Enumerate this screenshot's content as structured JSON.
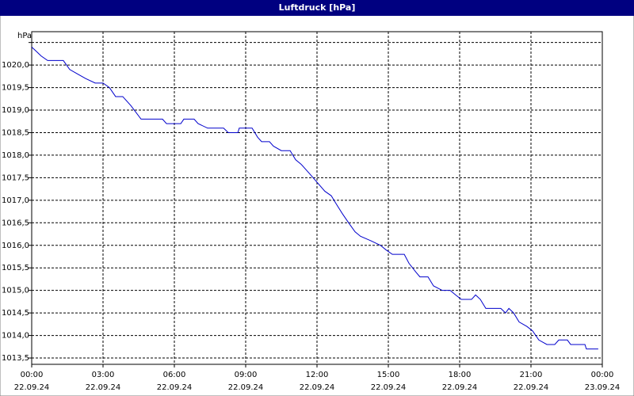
{
  "chart_data": {
    "type": "line",
    "title": "Luftdruck [hPa]",
    "y_unit": "hPa",
    "x": [
      0,
      0.2,
      0.4,
      0.67,
      1.33,
      1.6,
      1.93,
      2.27,
      2.67,
      3.0,
      3.27,
      3.53,
      3.83,
      4.17,
      4.6,
      5.5,
      5.67,
      6.27,
      6.4,
      6.83,
      7.0,
      7.4,
      8.07,
      8.27,
      8.67,
      8.73,
      9.27,
      9.5,
      9.67,
      10.0,
      10.17,
      10.5,
      10.87,
      11.1,
      11.33,
      11.67,
      12.0,
      12.33,
      12.6,
      12.83,
      13.07,
      13.33,
      13.6,
      13.83,
      14.27,
      14.67,
      14.9,
      15.17,
      15.67,
      15.87,
      16.17,
      16.33,
      16.67,
      16.9,
      17.27,
      17.6,
      17.83,
      18.07,
      18.5,
      18.67,
      18.87,
      19.1,
      19.73,
      19.93,
      20.07,
      20.27,
      20.5,
      20.83,
      21.07,
      21.33,
      21.67,
      22.0,
      22.17,
      22.53,
      22.67,
      23.27,
      23.33,
      23.83
    ],
    "series": [
      {
        "name": "Luftdruck",
        "color": "#0000cc",
        "values": [
          1020.4,
          1020.3,
          1020.2,
          1020.1,
          1020.1,
          1019.9,
          1019.8,
          1019.7,
          1019.6,
          1019.6,
          1019.5,
          1019.3,
          1019.3,
          1019.1,
          1018.8,
          1018.8,
          1018.7,
          1018.7,
          1018.8,
          1018.8,
          1018.7,
          1018.6,
          1018.6,
          1018.5,
          1018.5,
          1018.6,
          1018.6,
          1018.4,
          1018.3,
          1018.3,
          1018.2,
          1018.1,
          1018.1,
          1017.9,
          1017.8,
          1017.6,
          1017.4,
          1017.2,
          1017.1,
          1016.9,
          1016.7,
          1016.5,
          1016.3,
          1016.2,
          1016.1,
          1016.0,
          1015.9,
          1015.8,
          1015.8,
          1015.6,
          1015.4,
          1015.3,
          1015.3,
          1015.1,
          1015.0,
          1015.0,
          1014.9,
          1014.8,
          1014.8,
          1014.9,
          1014.8,
          1014.6,
          1014.6,
          1014.5,
          1014.6,
          1014.5,
          1014.3,
          1014.2,
          1014.1,
          1013.9,
          1013.8,
          1013.8,
          1013.9,
          1013.9,
          1013.8,
          1013.8,
          1013.7,
          1013.7
        ]
      }
    ],
    "xlim": [
      0,
      24
    ],
    "xticks": [
      {
        "value": 0,
        "label": "00:00",
        "date": "22.09.24"
      },
      {
        "value": 3,
        "label": "03:00",
        "date": "22.09.24"
      },
      {
        "value": 6,
        "label": "06:00",
        "date": "22.09.24"
      },
      {
        "value": 9,
        "label": "09:00",
        "date": "22.09.24"
      },
      {
        "value": 12,
        "label": "12:00",
        "date": "22.09.24"
      },
      {
        "value": 15,
        "label": "15:00",
        "date": "22.09.24"
      },
      {
        "value": 18,
        "label": "18:00",
        "date": "22.09.24"
      },
      {
        "value": 21,
        "label": "21:00",
        "date": "22.09.24"
      },
      {
        "value": 24,
        "label": "00:00",
        "date": "23.09.24"
      }
    ],
    "ylim": [
      1013.36,
      1020.74
    ],
    "yticks": [
      {
        "value": 1013.5,
        "label": "1013,5"
      },
      {
        "value": 1014,
        "label": "1014,0"
      },
      {
        "value": 1014.5,
        "label": "1014,5"
      },
      {
        "value": 1015,
        "label": "1015,0"
      },
      {
        "value": 1015.5,
        "label": "1015,5"
      },
      {
        "value": 1016,
        "label": "1016,0"
      },
      {
        "value": 1016.5,
        "label": "1016,5"
      },
      {
        "value": 1017,
        "label": "1017,0"
      },
      {
        "value": 1017.5,
        "label": "1017,5"
      },
      {
        "value": 1018,
        "label": "1018,0"
      },
      {
        "value": 1018.5,
        "label": "1018,5"
      },
      {
        "value": 1019,
        "label": "1019,0"
      },
      {
        "value": 1019.5,
        "label": "1019,5"
      },
      {
        "value": 1020,
        "label": "1020,0"
      },
      {
        "value": 1020.5,
        "label": null
      }
    ],
    "grid": true
  }
}
